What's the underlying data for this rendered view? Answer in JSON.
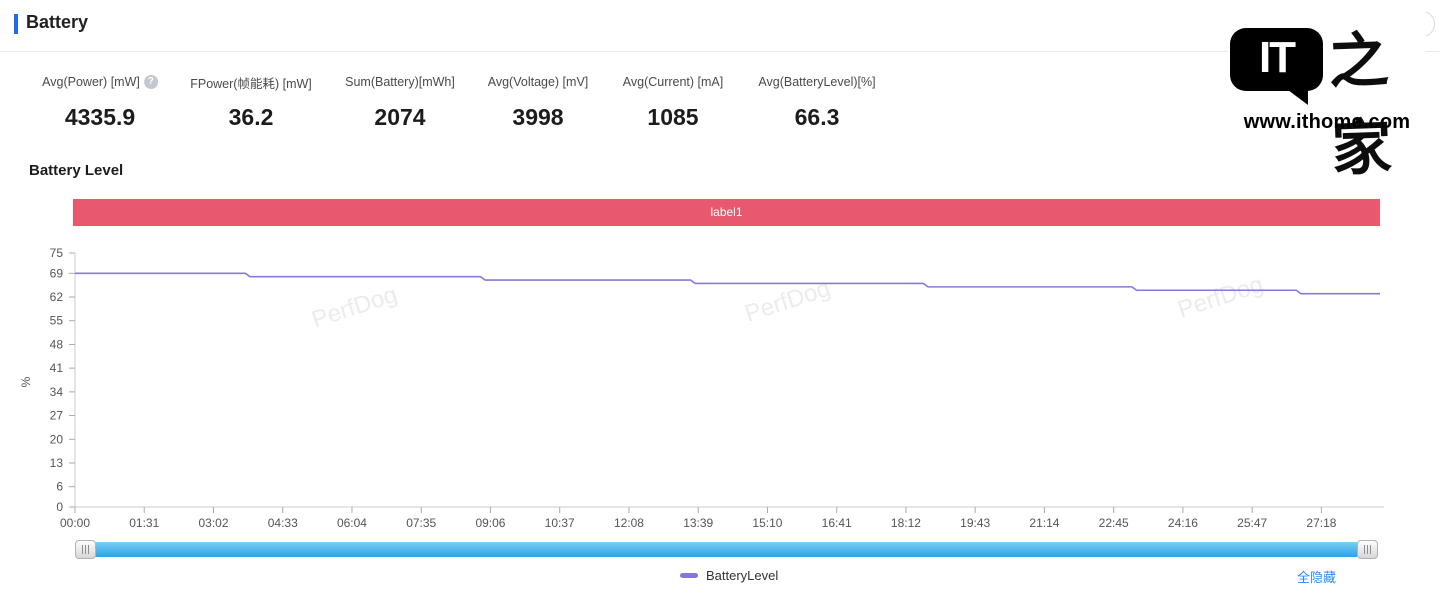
{
  "header": {
    "title": "Battery",
    "collapse_icon": "▼"
  },
  "ithome_logo": {
    "bubble_text": "IT",
    "cjk_text": "之家",
    "url": "www.ithome.com"
  },
  "stats": [
    {
      "label": "Avg(Power) [mW]",
      "value": "4335.9",
      "help_icon": "?"
    },
    {
      "label": "FPower(帧能耗) [mW]",
      "value": "36.2"
    },
    {
      "label": "Sum(Battery)[mWh]",
      "value": "2074"
    },
    {
      "label": "Avg(Voltage) [mV]",
      "value": "3998"
    },
    {
      "label": "Avg(Current) [mA]",
      "value": "1085"
    },
    {
      "label": "Avg(BatteryLevel)[%]",
      "value": "66.3"
    }
  ],
  "section": {
    "title": "Battery Level"
  },
  "label_bar": {
    "text": "label1",
    "color": "#e8596d"
  },
  "chart_data": {
    "type": "line",
    "title": "Battery Level",
    "watermark": "PerfDog",
    "grid": false,
    "legend_position": "bottom",
    "y_axis": {
      "label": "%",
      "max": 75,
      "ticks": [
        0,
        6,
        13,
        20,
        27,
        34,
        41,
        48,
        55,
        62,
        69,
        75
      ]
    },
    "x_axis": {
      "interval_sec": 91,
      "max_sec": 1715,
      "ticks": [
        "00:00",
        "01:31",
        "03:02",
        "04:33",
        "06:04",
        "07:35",
        "09:06",
        "10:37",
        "12:08",
        "13:39",
        "15:10",
        "16:41",
        "18:12",
        "19:43",
        "21:14",
        "22:45",
        "24:16",
        "25:47",
        "27:18"
      ]
    },
    "series": [
      {
        "name": "BatteryLevel",
        "color": "#897ad6",
        "points": [
          [
            0,
            69
          ],
          [
            224,
            69
          ],
          [
            230,
            68
          ],
          [
            533,
            68
          ],
          [
            539,
            67
          ],
          [
            809,
            67
          ],
          [
            815,
            66
          ],
          [
            1115,
            66
          ],
          [
            1121,
            65
          ],
          [
            1389,
            65
          ],
          [
            1395,
            64
          ],
          [
            1605,
            64
          ],
          [
            1611,
            63
          ],
          [
            1715,
            63
          ]
        ],
        "step_changes": [
          {
            "time": "00:00",
            "level": 69
          },
          {
            "time": "03:44",
            "level": 68
          },
          {
            "time": "08:53",
            "level": 67
          },
          {
            "time": "13:29",
            "level": 66
          },
          {
            "time": "18:35",
            "level": 65
          },
          {
            "time": "23:09",
            "level": 64
          },
          {
            "time": "26:45",
            "level": 63
          }
        ]
      }
    ]
  },
  "legend": {
    "items": [
      {
        "label": "BatteryLevel",
        "color": "#8577d8"
      }
    ]
  },
  "links": {
    "hide_all": "全隐藏"
  },
  "scrollbar": {
    "color_top": "#7ccdf5",
    "color_bottom": "#2aa4e4"
  }
}
